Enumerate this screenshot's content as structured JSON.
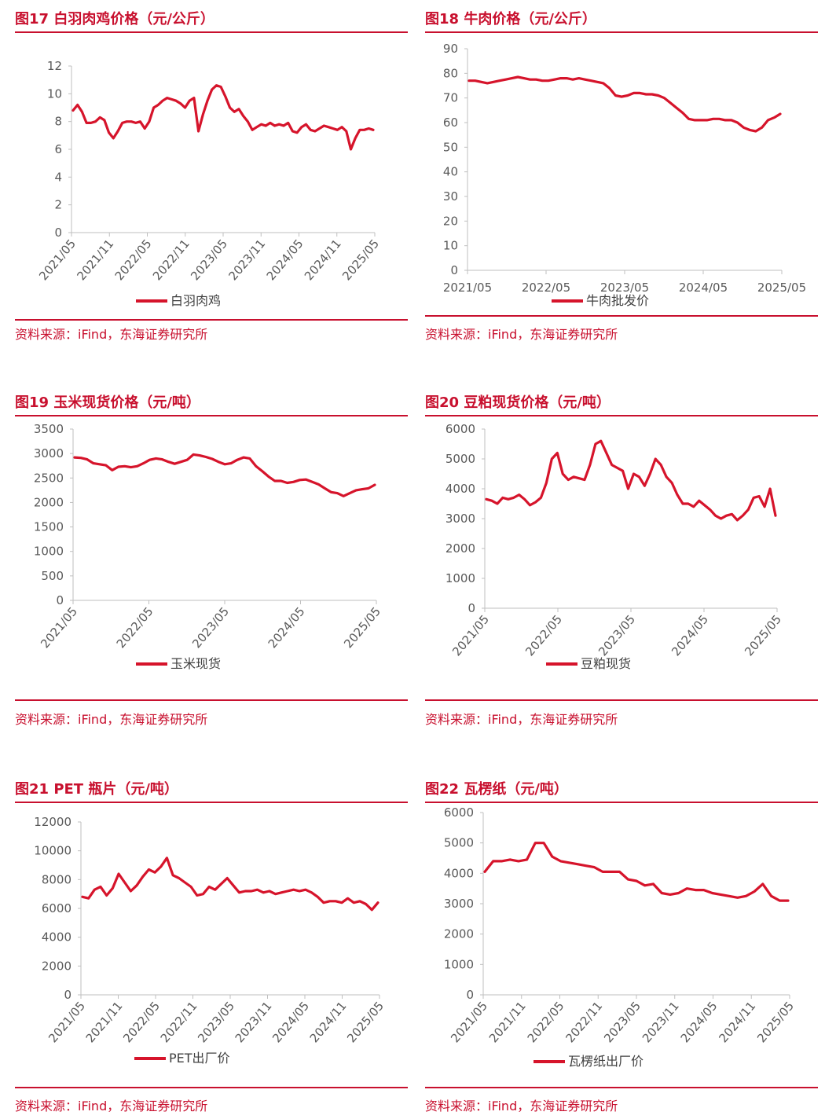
{
  "source_text": "资料来源：iFind，东海证券研究所",
  "colors": {
    "accent": "#c8102e",
    "line": "#d6142b",
    "axis": "#bfbfbf",
    "text": "#595959"
  },
  "chart_data": [
    {
      "id": "fig17",
      "type": "line",
      "title": "图17  白羽肉鸡价格（元/公斤）",
      "legend": "白羽肉鸡",
      "ylim": [
        0,
        12
      ],
      "yticks": [
        0,
        2,
        4,
        6,
        8,
        10,
        12
      ],
      "xlabels": [
        "2021/05",
        "2021/11",
        "2022/05",
        "2022/11",
        "2023/05",
        "2023/11",
        "2024/05",
        "2024/11",
        "2025/05"
      ],
      "x_rotated": true,
      "series": [
        {
          "values": [
            8.8,
            9.2,
            8.7,
            7.9,
            7.9,
            8.0,
            8.3,
            8.1,
            7.2,
            6.8,
            7.3,
            7.9,
            8.0,
            8.0,
            7.9,
            8.0,
            7.5,
            8.0,
            9.0,
            9.2,
            9.5,
            9.7,
            9.6,
            9.5,
            9.3,
            9.0,
            9.5,
            9.7,
            7.3,
            8.5,
            9.5,
            10.3,
            10.6,
            10.5,
            9.8,
            9.0,
            8.7,
            8.9,
            8.4,
            8.0,
            7.4,
            7.6,
            7.8,
            7.7,
            7.9,
            7.7,
            7.8,
            7.7,
            7.9,
            7.3,
            7.2,
            7.6,
            7.8,
            7.4,
            7.3,
            7.5,
            7.7,
            7.6,
            7.5,
            7.4,
            7.6,
            7.3,
            6.0,
            6.8,
            7.4,
            7.4,
            7.5,
            7.4
          ]
        }
      ]
    },
    {
      "id": "fig18",
      "type": "line",
      "title": "图18  牛肉价格（元/公斤）",
      "legend": "牛肉批发价",
      "ylim": [
        0,
        90
      ],
      "yticks": [
        0,
        10,
        20,
        30,
        40,
        50,
        60,
        70,
        80,
        90
      ],
      "xlabels": [
        "2021/05",
        "2022/05",
        "2023/05",
        "2024/05",
        "2025/05"
      ],
      "x_rotated": false,
      "series": [
        {
          "values": [
            77,
            77,
            76.5,
            76,
            76.5,
            77,
            77.5,
            78,
            78.5,
            78,
            77.5,
            77.5,
            77,
            77,
            77.5,
            78,
            78,
            77.5,
            78,
            77.5,
            77,
            76.5,
            76,
            74,
            71,
            70.5,
            71,
            72,
            72,
            71.5,
            71.5,
            71,
            70,
            68,
            66,
            64,
            61.5,
            61,
            61,
            61,
            61.5,
            61.5,
            61,
            61,
            60,
            58,
            57,
            56.5,
            58,
            61,
            62,
            63.5
          ]
        }
      ]
    },
    {
      "id": "fig19",
      "type": "line",
      "title": "图19  玉米现货价格（元/吨）",
      "legend": "玉米现货",
      "ylim": [
        0,
        3500
      ],
      "yticks": [
        0,
        500,
        1000,
        1500,
        2000,
        2500,
        3000,
        3500
      ],
      "xlabels": [
        "2021/05",
        "2022/05",
        "2023/05",
        "2024/05",
        "2025/05"
      ],
      "x_rotated": true,
      "series": [
        {
          "values": [
            2920,
            2910,
            2880,
            2800,
            2780,
            2760,
            2660,
            2730,
            2740,
            2720,
            2740,
            2800,
            2870,
            2900,
            2880,
            2830,
            2790,
            2830,
            2870,
            2980,
            2960,
            2930,
            2890,
            2830,
            2780,
            2800,
            2870,
            2920,
            2900,
            2740,
            2640,
            2530,
            2440,
            2440,
            2400,
            2420,
            2460,
            2470,
            2420,
            2370,
            2290,
            2210,
            2190,
            2130,
            2190,
            2250,
            2270,
            2290,
            2360
          ]
        }
      ]
    },
    {
      "id": "fig20",
      "type": "line",
      "title": "图20  豆粕现货价格（元/吨）",
      "legend": "豆粕现货",
      "ylim": [
        0,
        6000
      ],
      "yticks": [
        0,
        1000,
        2000,
        3000,
        4000,
        5000,
        6000
      ],
      "xlabels": [
        "2021/05",
        "2022/05",
        "2023/05",
        "2024/05",
        "2025/05"
      ],
      "x_rotated": true,
      "series": [
        {
          "values": [
            3650,
            3600,
            3500,
            3700,
            3650,
            3700,
            3800,
            3650,
            3450,
            3550,
            3700,
            4200,
            5000,
            5200,
            4500,
            4300,
            4400,
            4350,
            4300,
            4800,
            5500,
            5600,
            5200,
            4800,
            4700,
            4600,
            4000,
            4500,
            4400,
            4100,
            4500,
            5000,
            4800,
            4400,
            4200,
            3800,
            3500,
            3500,
            3400,
            3600,
            3450,
            3300,
            3100,
            3000,
            3100,
            3150,
            2950,
            3100,
            3300,
            3700,
            3750,
            3400,
            4000,
            3100
          ]
        }
      ]
    },
    {
      "id": "fig21",
      "type": "line",
      "title": "图21  PET 瓶片（元/吨）",
      "legend": "PET出厂价",
      "ylim": [
        0,
        12000
      ],
      "yticks": [
        0,
        2000,
        4000,
        6000,
        8000,
        10000,
        12000
      ],
      "xlabels": [
        "2021/05",
        "2021/11",
        "2022/05",
        "2022/11",
        "2023/05",
        "2023/11",
        "2024/05",
        "2024/11",
        "2025/05"
      ],
      "x_rotated": true,
      "series": [
        {
          "values": [
            6800,
            6700,
            7300,
            7500,
            6900,
            7400,
            8400,
            7800,
            7200,
            7600,
            8200,
            8700,
            8500,
            8900,
            9500,
            8300,
            8100,
            7800,
            7500,
            6900,
            7000,
            7500,
            7300,
            7700,
            8100,
            7600,
            7100,
            7200,
            7200,
            7300,
            7100,
            7200,
            7000,
            7100,
            7200,
            7300,
            7200,
            7300,
            7100,
            6800,
            6400,
            6500,
            6500,
            6400,
            6700,
            6400,
            6500,
            6300,
            5900,
            6400
          ]
        }
      ]
    },
    {
      "id": "fig22",
      "type": "line",
      "title": "图22  瓦楞纸（元/吨）",
      "legend": "瓦楞纸出厂价",
      "ylim": [
        0,
        6000
      ],
      "yticks": [
        0,
        1000,
        2000,
        3000,
        4000,
        5000,
        6000
      ],
      "xlabels": [
        "2021/05",
        "2021/11",
        "2022/05",
        "2022/11",
        "2023/05",
        "2023/11",
        "2024/05",
        "2024/11",
        "2025/05"
      ],
      "x_rotated": true,
      "series": [
        {
          "values": [
            4050,
            4400,
            4400,
            4450,
            4400,
            4450,
            5000,
            5000,
            4550,
            4400,
            4350,
            4300,
            4250,
            4200,
            4050,
            4050,
            4050,
            3800,
            3750,
            3600,
            3650,
            3350,
            3300,
            3350,
            3500,
            3450,
            3450,
            3350,
            3300,
            3250,
            3200,
            3250,
            3400,
            3650,
            3250,
            3100,
            3100
          ]
        }
      ]
    }
  ]
}
